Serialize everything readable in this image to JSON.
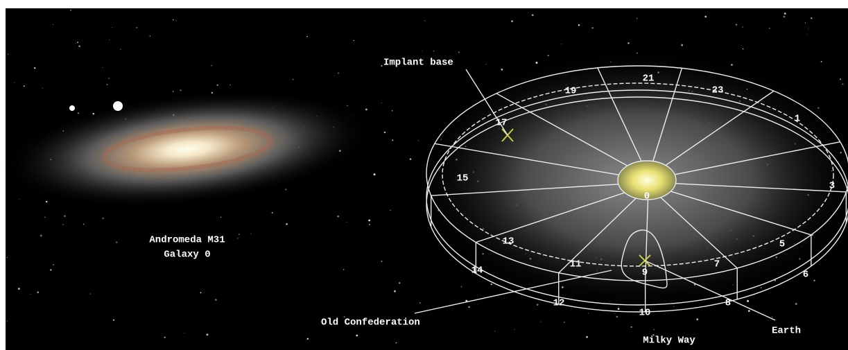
{
  "andromeda": {
    "lines": [
      "Andromeda M31",
      "Galaxy 0"
    ]
  },
  "milky_way": {
    "label": "Milky Way",
    "sectors": [
      "21",
      "23",
      "19",
      "17",
      "1",
      "15",
      "3",
      "0",
      "13",
      "5",
      "11",
      "7",
      "9",
      "14",
      "6",
      "12",
      "8",
      "10"
    ],
    "annotations": {
      "implant_base": "Implant base",
      "old_confederation": "Old Confederation",
      "earth": "Earth"
    }
  }
}
